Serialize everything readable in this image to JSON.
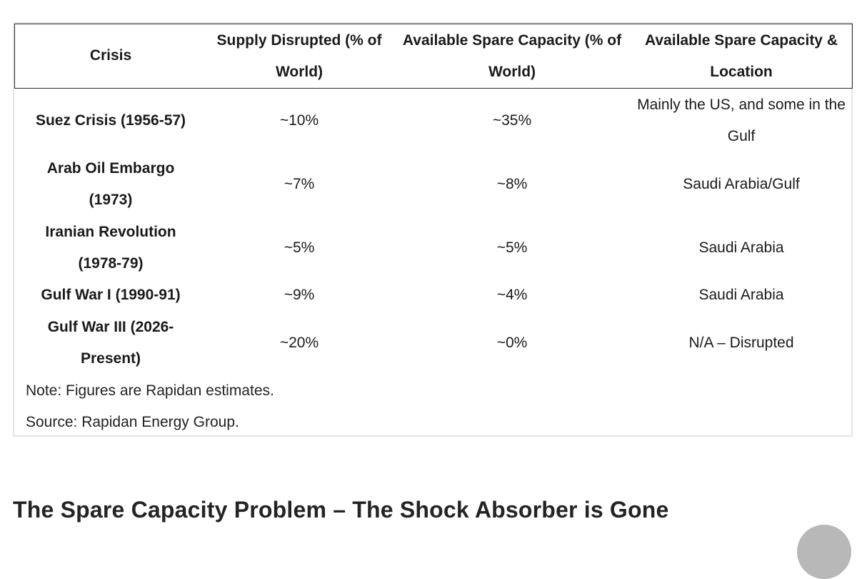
{
  "table": {
    "headers": [
      "Crisis",
      "Supply Disrupted (% of World)",
      "Available Spare Capacity (% of World)",
      "Available Spare Capacity & Location"
    ],
    "rows": [
      {
        "crisis": "Suez Crisis (1956-57)",
        "supply_disrupted": "~10%",
        "spare_capacity": "~35%",
        "location": "Mainly the US, and some in the Gulf"
      },
      {
        "crisis": "Arab Oil Embargo (1973)",
        "supply_disrupted": "~7%",
        "spare_capacity": "~8%",
        "location": "Saudi Arabia/Gulf"
      },
      {
        "crisis": "Iranian Revolution (1978-79)",
        "supply_disrupted": "~5%",
        "spare_capacity": "~5%",
        "location": "Saudi Arabia"
      },
      {
        "crisis": "Gulf War I (1990-91)",
        "supply_disrupted": "~9%",
        "spare_capacity": "~4%",
        "location": "Saudi Arabia"
      },
      {
        "crisis": "Gulf War III (2026-Present)",
        "supply_disrupted": "~20%",
        "spare_capacity": "~0%",
        "location": "N/A – Disrupted"
      }
    ],
    "note": "Note: Figures are Rapidan estimates.",
    "source": "Source: Rapidan Energy Group."
  },
  "section_heading": "The Spare Capacity Problem – The Shock Absorber is Gone"
}
